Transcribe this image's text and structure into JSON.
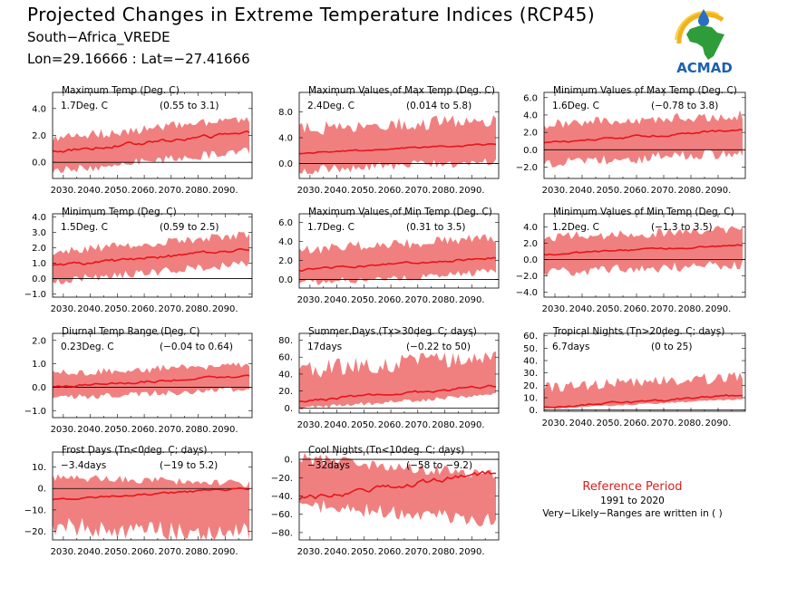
{
  "header": {
    "title": "Projected Changes in Extreme Temperature Indices (RCP45)",
    "subtitle": "South−Africa_VREDE",
    "coords": "Lon=29.16666 : Lat=−27.41666",
    "logo_text": "ACMAD"
  },
  "reference": {
    "title": "Reference Period",
    "period": "1991 to 2020",
    "note": "Very−Likely−Ranges are written in ( )"
  },
  "colors": {
    "band": "#f08080",
    "line": "#e8141a",
    "reference_title": "#d81f1f"
  },
  "chart_data": [
    {
      "type": "line",
      "title": "Maximum Temp (Deg. C)",
      "mean_label": "1.7Deg. C",
      "range_label": "(0.55 to 3.1)",
      "xlim": [
        2026,
        2100
      ],
      "ylim": [
        -1.2,
        5.2
      ],
      "x_ticks": [
        2030,
        2040,
        2050,
        2060,
        2070,
        2080,
        2090
      ],
      "x_tick_labels": [
        "2030.",
        "2040.",
        "2050.",
        "2060.",
        "2070.",
        "2080.",
        "2090."
      ],
      "y_ticks": [
        0,
        2,
        4
      ],
      "y_tick_labels": [
        "0.0",
        "2.0",
        "4.0"
      ],
      "band": {
        "start": 0.5,
        "end": 2.0,
        "lower_offset": 1.1,
        "upper_offset": 1.2
      },
      "median_range": [
        0.8,
        2.2
      ]
    },
    {
      "type": "line",
      "title": "Maximum Values of Max Temp (Deg. C)",
      "mean_label": "2.4Deg. C",
      "range_label": "(0.014 to 5.8)",
      "xlim": [
        2026,
        2100
      ],
      "ylim": [
        -2.3,
        11
      ],
      "x_ticks": [
        2030,
        2040,
        2050,
        2060,
        2070,
        2080,
        2090
      ],
      "x_tick_labels": [
        "2030.",
        "2040.",
        "2050.",
        "2060.",
        "2070.",
        "2080.",
        "2090."
      ],
      "y_ticks": [
        0,
        4,
        8
      ],
      "y_tick_labels": [
        "0.0",
        "4.0",
        "8.0"
      ],
      "band": {
        "start": 1.5,
        "end": 3.0,
        "lower_offset": 2.5,
        "upper_offset": 3.6
      },
      "median_range": [
        1.6,
        3.0
      ]
    },
    {
      "type": "line",
      "title": "Minimum Values of Max Temp (Deg. C)",
      "mean_label": "1.6Deg. C",
      "range_label": "(−0.78 to 3.8)",
      "xlim": [
        2026,
        2100
      ],
      "ylim": [
        -3.3,
        6.6
      ],
      "x_ticks": [
        2030,
        2040,
        2050,
        2060,
        2070,
        2080,
        2090
      ],
      "x_tick_labels": [
        "2030.",
        "2040.",
        "2050.",
        "2060.",
        "2070.",
        "2080.",
        "2090."
      ],
      "y_ticks": [
        -2,
        0,
        2,
        4,
        6
      ],
      "y_tick_labels": [
        "−2.0",
        "0.0",
        "2.0",
        "4.0",
        "6.0"
      ],
      "band": {
        "start": 0.8,
        "end": 1.9,
        "lower_offset": 2.2,
        "upper_offset": 2.0
      },
      "median_range": [
        0.8,
        2.3
      ]
    },
    {
      "type": "line",
      "title": "Minimum Temp (Deg. C)",
      "mean_label": "1.5Deg. C",
      "range_label": "(0.59 to 2.5)",
      "xlim": [
        2026,
        2100
      ],
      "ylim": [
        -1.2,
        4.2
      ],
      "x_ticks": [
        2030,
        2040,
        2050,
        2060,
        2070,
        2080,
        2090
      ],
      "x_tick_labels": [
        "2030.",
        "2040.",
        "2050.",
        "2060.",
        "2070.",
        "2080.",
        "2090."
      ],
      "y_ticks": [
        -1,
        0,
        1,
        2,
        3,
        4
      ],
      "y_tick_labels": [
        "−1.0",
        "0.0",
        "1.0",
        "2.0",
        "3.0",
        "4.0"
      ],
      "band": {
        "start": 0.8,
        "end": 1.9,
        "lower_offset": 0.9,
        "upper_offset": 0.9
      },
      "median_range": [
        0.8,
        1.9
      ]
    },
    {
      "type": "line",
      "title": "Maximum Values of Min Temp (Deg. C)",
      "mean_label": "1.7Deg. C",
      "range_label": "(0.31 to 3.5)",
      "xlim": [
        2026,
        2100
      ],
      "ylim": [
        -0.9,
        6.9
      ],
      "x_ticks": [
        2030,
        2040,
        2050,
        2060,
        2070,
        2080,
        2090
      ],
      "x_tick_labels": [
        "2030.",
        "2040.",
        "2050.",
        "2060.",
        "2070.",
        "2080.",
        "2090."
      ],
      "y_ticks": [
        0,
        2,
        4,
        6
      ],
      "y_tick_labels": [
        "0.0",
        "2.0",
        "4.0",
        "6.0"
      ],
      "band": {
        "start": 1.0,
        "end": 2.2,
        "lower_offset": 1.3,
        "upper_offset": 2.0
      },
      "median_range": [
        1.0,
        2.3
      ]
    },
    {
      "type": "line",
      "title": "Minimum Values of Min Temp (Deg. C)",
      "mean_label": "1.2Deg. C",
      "range_label": "(−1.3 to 3.5)",
      "xlim": [
        2026,
        2100
      ],
      "ylim": [
        -4.6,
        5.6
      ],
      "x_ticks": [
        2030,
        2040,
        2050,
        2060,
        2070,
        2080,
        2090
      ],
      "x_tick_labels": [
        "2030.",
        "2040.",
        "2050.",
        "2060.",
        "2070.",
        "2080.",
        "2090."
      ],
      "y_ticks": [
        -4,
        -2,
        0,
        2,
        4
      ],
      "y_tick_labels": [
        "−4.0",
        "−2.0",
        "0.0",
        "2.0",
        "4.0"
      ],
      "band": {
        "start": 0.6,
        "end": 1.6,
        "lower_offset": 2.1,
        "upper_offset": 2.0
      },
      "median_range": [
        0.6,
        1.8
      ]
    },
    {
      "type": "line",
      "title": "Diurnal Temp Range (Deg. C)",
      "mean_label": "0.23Deg. C",
      "range_label": "(−0.04 to 0.64)",
      "xlim": [
        2026,
        2100
      ],
      "ylim": [
        -1.3,
        2.3
      ],
      "x_ticks": [
        2030,
        2040,
        2050,
        2060,
        2070,
        2080,
        2090
      ],
      "x_tick_labels": [
        "2030.",
        "2040.",
        "2050.",
        "2060.",
        "2070.",
        "2080.",
        "2090."
      ],
      "y_ticks": [
        -1,
        0,
        1,
        2
      ],
      "y_tick_labels": [
        "−1.0",
        "0.0",
        "1.0",
        "2.0"
      ],
      "band": {
        "start": 0.0,
        "end": 0.4,
        "lower_offset": 0.45,
        "upper_offset": 0.55
      },
      "median_range": [
        0.0,
        0.5
      ]
    },
    {
      "type": "line",
      "title": "Summer Days (Tx>30deg. C; days)",
      "mean_label": "17days",
      "range_label": "(−0.22 to 50)",
      "xlim": [
        2026,
        2100
      ],
      "ylim": [
        -6,
        88
      ],
      "x_ticks": [
        2030,
        2040,
        2050,
        2060,
        2070,
        2080,
        2090
      ],
      "x_tick_labels": [
        "2030.",
        "2040.",
        "2050.",
        "2060.",
        "2070.",
        "2080.",
        "2090."
      ],
      "y_ticks": [
        0,
        20,
        40,
        60,
        80
      ],
      "y_tick_labels": [
        "0.",
        "20.",
        "40.",
        "60.",
        "80."
      ],
      "band": {
        "start": 8,
        "end": 24,
        "lower_offset": 8,
        "upper_offset": 35
      },
      "median_range": [
        8,
        26
      ]
    },
    {
      "type": "line",
      "title": "Tropical Nights (Tn>20deg. C; days)",
      "mean_label": "6.7days",
      "range_label": "(0 to 25)",
      "xlim": [
        2026,
        2100
      ],
      "ylim": [
        -1,
        62
      ],
      "x_ticks": [
        2030,
        2040,
        2050,
        2060,
        2070,
        2080,
        2090
      ],
      "x_tick_labels": [
        "2030.",
        "2040.",
        "2050.",
        "2060.",
        "2070.",
        "2080.",
        "2090."
      ],
      "y_ticks": [
        0,
        10,
        20,
        30,
        40,
        50,
        60
      ],
      "y_tick_labels": [
        "0.",
        "10.",
        "20.",
        "30.",
        "40.",
        "50.",
        "60."
      ],
      "band": {
        "start": 3,
        "end": 11,
        "lower_offset": 2,
        "upper_offset": 15
      },
      "median_range": [
        2,
        12
      ]
    },
    {
      "type": "line",
      "title": "Frost Days (Tn<0deg. C; days)",
      "mean_label": "−3.4days",
      "range_label": "(−19 to 5.2)",
      "xlim": [
        2026,
        2100
      ],
      "ylim": [
        -24,
        17
      ],
      "x_ticks": [
        2030,
        2040,
        2050,
        2060,
        2070,
        2080,
        2090
      ],
      "x_tick_labels": [
        "2030.",
        "2040.",
        "2050.",
        "2060.",
        "2070.",
        "2080.",
        "2090."
      ],
      "y_ticks": [
        -20,
        -10,
        0,
        10
      ],
      "y_tick_labels": [
        "−20.",
        "−10.",
        "0.",
        "10."
      ],
      "band": {
        "start": -1,
        "end": -4,
        "lower_offset": 16,
        "upper_offset": 6
      },
      "median_range": [
        -5,
        0
      ]
    },
    {
      "type": "line",
      "title": "Cool Nights (Tn<10deg. C; days)",
      "mean_label": "−32days",
      "range_label": "(−58 to −9.2)",
      "xlim": [
        2026,
        2100
      ],
      "ylim": [
        -88,
        8
      ],
      "x_ticks": [
        2030,
        2040,
        2050,
        2060,
        2070,
        2080,
        2090
      ],
      "x_tick_labels": [
        "2030.",
        "2040.",
        "2050.",
        "2060.",
        "2070.",
        "2080.",
        "2090."
      ],
      "y_ticks": [
        -80,
        -60,
        -40,
        -20,
        0
      ],
      "y_tick_labels": [
        "−80.",
        "−60.",
        "−40.",
        "−20.",
        "0."
      ],
      "band": {
        "start": -22,
        "end": -40,
        "lower_offset": 26,
        "upper_offset": 22
      },
      "median_range": [
        -44,
        -14
      ]
    }
  ]
}
